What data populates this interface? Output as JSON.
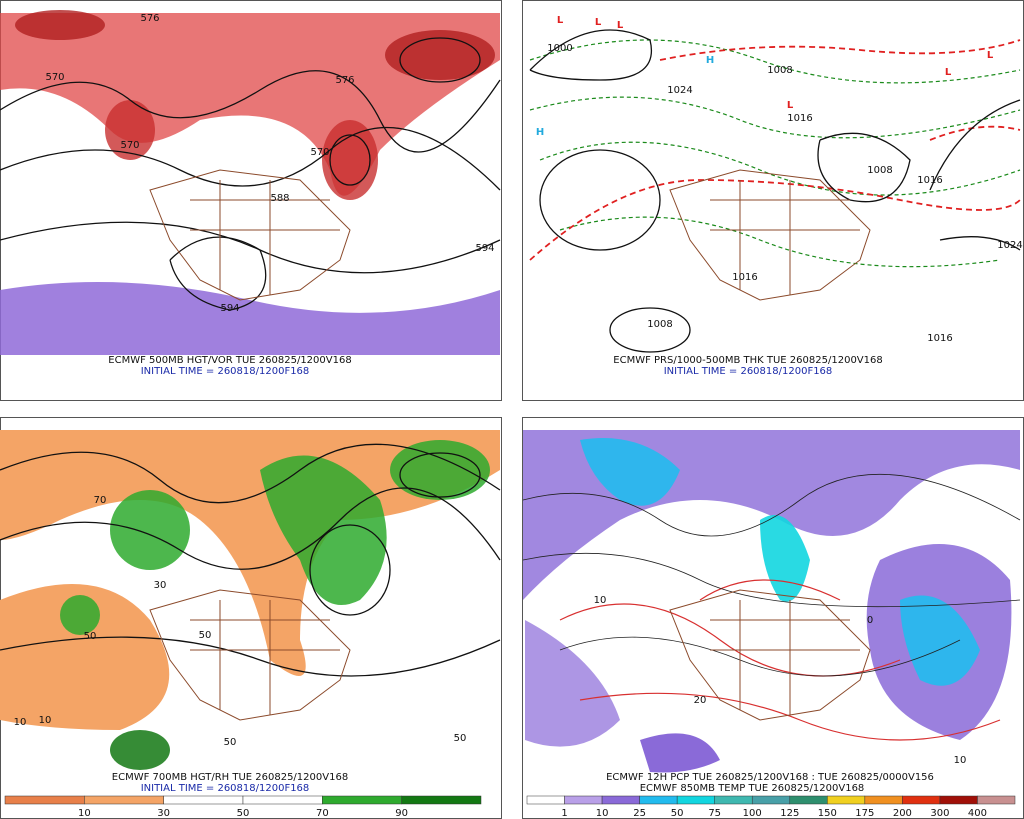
{
  "panels": [
    {
      "captions": [
        "ECMWF 500MB HGT/VOR TUE 260825/1200V168",
        "INITIAL TIME = 260818/1200F168"
      ],
      "contour_labels": [
        "570",
        "576",
        "570",
        "588",
        "570",
        "594",
        "594",
        "576"
      ]
    },
    {
      "captions": [
        "ECMWF PRS/1000-500MB THK TUE 260825/1200V168",
        "INITIAL TIME = 260818/1200F168"
      ],
      "contour_labels": [
        "1000",
        "1024",
        "1008",
        "1016",
        "1008",
        "1016",
        "1024",
        "1008",
        "1016",
        "1016"
      ],
      "symbols": [
        "L",
        "L",
        "L",
        "H",
        "H",
        "L",
        "L",
        "L"
      ]
    },
    {
      "captions": [
        "ECMWF 700MB HGT/RH TUE 260825/1200V168",
        "INITIAL TIME = 260818/1200F168"
      ],
      "contour_labels": [
        "10",
        "50",
        "30",
        "50",
        "10",
        "50",
        "50",
        "70"
      ],
      "colorbar": {
        "labels": [
          10,
          30,
          50,
          70,
          90
        ],
        "colors": [
          "#e8804a",
          "#f4a466",
          "#ffffff",
          "#ffffff",
          "#2eaa2e",
          "#137813"
        ]
      }
    },
    {
      "captions": [
        "ECMWF 12H PCP TUE 260825/1200V168 : TUE 260825/0000V156",
        "ECMWF 850MB TEMP TUE 260825/1200V168"
      ],
      "contour_labels": [
        "10",
        "20",
        "10",
        "0"
      ],
      "colorbar": {
        "labels": [
          1,
          10,
          25,
          50,
          75,
          100,
          125,
          150,
          175,
          200,
          300,
          400
        ],
        "colors": [
          "#ffffff",
          "#b9a0e8",
          "#8a6ad8",
          "#22bbee",
          "#12d6e0",
          "#3fb8b0",
          "#48a0a8",
          "#2e8f6e",
          "#f0d020",
          "#f09020",
          "#e03010",
          "#a01008",
          "#c89090"
        ]
      }
    }
  ]
}
